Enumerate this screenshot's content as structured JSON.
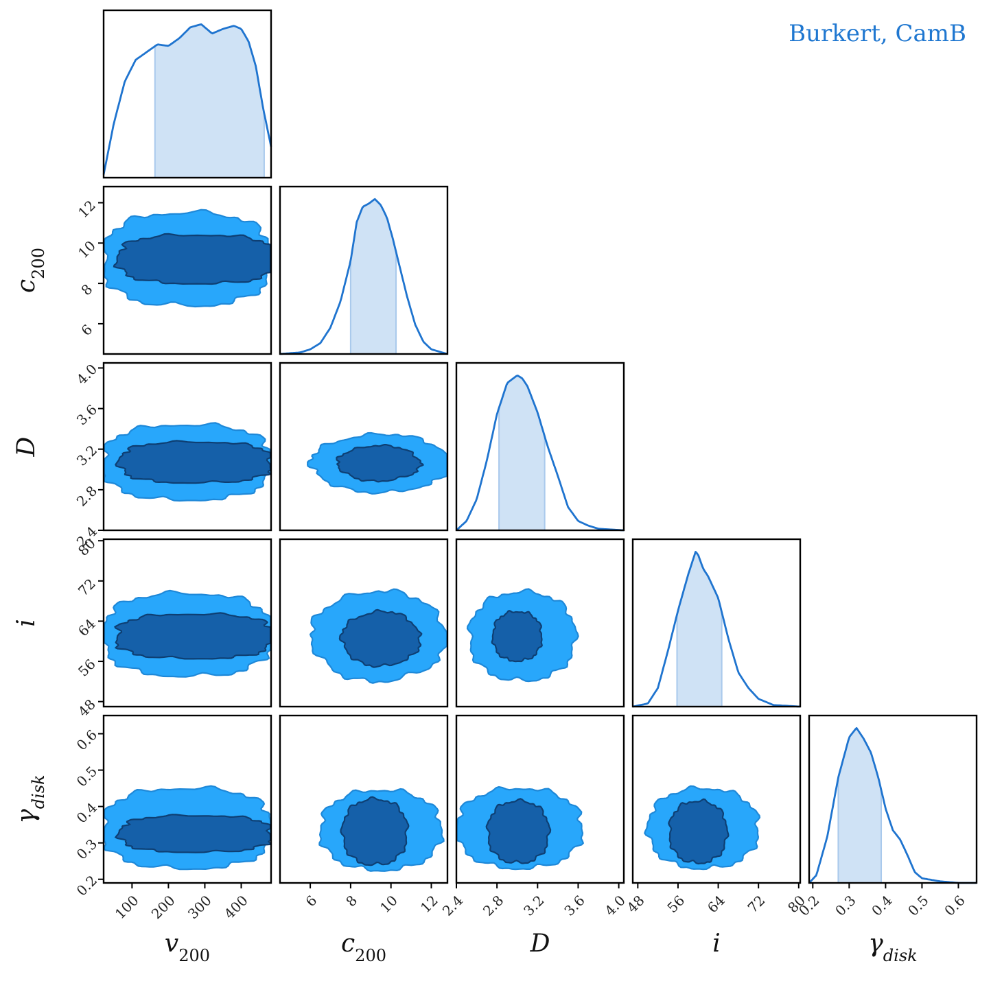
{
  "legend": {
    "label": "Burkert, CamB",
    "color": "#1f77d0"
  },
  "colors": {
    "line": "#1f74cf",
    "hdi_fill": "#cfe2f5",
    "hdi_edge": "#a9c9ec",
    "outer": "#28a7fb",
    "outer_edge": "#1e88d8",
    "inner": "#1560a9",
    "inner_edge": "#0e3f73"
  },
  "chart_data": {
    "type": "corner",
    "params": [
      {
        "id": "v200",
        "label": "v",
        "sub": "200",
        "range": [
          22,
          482
        ],
        "ticks": [
          100,
          200,
          300,
          400
        ],
        "tick_labels": [
          "100",
          "200",
          "300",
          "400"
        ]
      },
      {
        "id": "c200",
        "label": "c",
        "sub": "200",
        "range": [
          4.5,
          12.8
        ],
        "ticks": [
          6,
          8,
          10,
          12
        ],
        "tick_labels": [
          "6",
          "8",
          "10",
          "12"
        ]
      },
      {
        "id": "D",
        "label": "D",
        "sub": "",
        "range": [
          2.4,
          4.05
        ],
        "ticks": [
          2.4,
          2.8,
          3.2,
          3.6,
          4.0
        ],
        "tick_labels": [
          "2.4",
          "2.8",
          "3.2",
          "3.6",
          "4.0"
        ]
      },
      {
        "id": "i",
        "label": "i",
        "sub": "",
        "range": [
          47,
          80.3
        ],
        "ticks": [
          48,
          56,
          64,
          72,
          80
        ],
        "tick_labels": [
          "48",
          "56",
          "64",
          "72",
          "80"
        ]
      },
      {
        "id": "gdisk",
        "label": "γ",
        "sub": "disk",
        "range": [
          0.19,
          0.65
        ],
        "ticks": [
          0.2,
          0.3,
          0.4,
          0.5,
          0.6
        ],
        "tick_labels": [
          "0.2",
          "0.3",
          "0.4",
          "0.5",
          "0.6"
        ]
      }
    ],
    "marginals": [
      {
        "x": [
          22,
          50,
          80,
          110,
          140,
          170,
          200,
          230,
          260,
          290,
          320,
          350,
          380,
          400,
          420,
          440,
          460,
          482
        ],
        "y": [
          0.02,
          0.35,
          0.62,
          0.76,
          0.81,
          0.86,
          0.85,
          0.9,
          0.97,
          0.99,
          0.93,
          0.96,
          0.98,
          0.96,
          0.88,
          0.72,
          0.45,
          0.2
        ],
        "hdi": [
          163,
          463
        ]
      },
      {
        "x": [
          4.5,
          5.5,
          6.0,
          6.5,
          7.0,
          7.5,
          8.0,
          8.3,
          8.6,
          8.9,
          9.2,
          9.5,
          9.8,
          10.1,
          10.4,
          10.8,
          11.2,
          11.6,
          12.0,
          12.8
        ],
        "y": [
          0.0,
          0.01,
          0.03,
          0.07,
          0.17,
          0.34,
          0.6,
          0.85,
          0.95,
          0.97,
          1.0,
          0.96,
          0.88,
          0.74,
          0.58,
          0.37,
          0.19,
          0.08,
          0.03,
          0.0
        ],
        "hdi": [
          8.0,
          10.25
        ]
      },
      {
        "x": [
          2.4,
          2.5,
          2.6,
          2.7,
          2.8,
          2.9,
          3.0,
          3.05,
          3.1,
          3.2,
          3.3,
          3.4,
          3.5,
          3.6,
          3.7,
          3.8,
          4.05
        ],
        "y": [
          0.0,
          0.06,
          0.2,
          0.45,
          0.75,
          0.95,
          1.0,
          0.98,
          0.93,
          0.76,
          0.54,
          0.35,
          0.15,
          0.06,
          0.03,
          0.01,
          0.0
        ],
        "hdi": [
          2.82,
          3.27
        ]
      },
      {
        "x": [
          47,
          50,
          52,
          54,
          56,
          58,
          59.5,
          60,
          61,
          62,
          64,
          66,
          67,
          68,
          70,
          72,
          75,
          80.3
        ],
        "y": [
          0.0,
          0.02,
          0.12,
          0.36,
          0.62,
          0.85,
          1.0,
          0.98,
          0.89,
          0.84,
          0.7,
          0.44,
          0.33,
          0.22,
          0.12,
          0.05,
          0.01,
          0.0
        ],
        "hdi": [
          55.8,
          64.7
        ]
      },
      {
        "x": [
          0.19,
          0.21,
          0.24,
          0.27,
          0.3,
          0.32,
          0.34,
          0.36,
          0.38,
          0.4,
          0.42,
          0.44,
          0.46,
          0.48,
          0.5,
          0.55,
          0.6,
          0.65
        ],
        "y": [
          0.0,
          0.05,
          0.3,
          0.68,
          0.94,
          1.0,
          0.93,
          0.84,
          0.68,
          0.48,
          0.34,
          0.28,
          0.18,
          0.07,
          0.03,
          0.01,
          0.0,
          0.0
        ],
        "hdi": [
          0.27,
          0.388
        ]
      }
    ],
    "pairs": [
      {
        "row": 1,
        "col": 0,
        "outer": {
          "cx": 252,
          "cy": 9.2,
          "rx": 232,
          "ry": 2.3,
          "rot": 0,
          "sq": 0.22
        },
        "inner": {
          "cx": 279,
          "cy": 9.2,
          "rx": 218,
          "ry": 1.2,
          "rot": 0,
          "sq": 0.28
        }
      },
      {
        "row": 2,
        "col": 0,
        "outer": {
          "cx": 252,
          "cy": 3.07,
          "rx": 232,
          "ry": 0.37,
          "rot": 0,
          "sq": 0.22
        },
        "inner": {
          "cx": 275,
          "cy": 3.07,
          "rx": 208,
          "ry": 0.2,
          "rot": 0,
          "sq": 0.28
        }
      },
      {
        "row": 2,
        "col": 1,
        "outer": {
          "cx": 9.5,
          "cy": 3.06,
          "rx": 3.4,
          "ry": 0.28,
          "rot": 30,
          "sq": 0.1
        },
        "inner": {
          "cx": 9.4,
          "cy": 3.06,
          "rx": 2.0,
          "ry": 0.17,
          "rot": 30,
          "sq": 0.12
        }
      },
      {
        "row": 2,
        "col": 2,
        "skip": true
      },
      {
        "row": 3,
        "col": 0,
        "outer": {
          "cx": 252,
          "cy": 61.3,
          "rx": 232,
          "ry": 8.2,
          "rot": -1,
          "sq": 0.22
        },
        "inner": {
          "cx": 272,
          "cy": 61.0,
          "rx": 215,
          "ry": 4.4,
          "rot": -1,
          "sq": 0.28
        }
      },
      {
        "row": 3,
        "col": 1,
        "outer": {
          "cx": 9.4,
          "cy": 61.0,
          "rx": 3.3,
          "ry": 8.8,
          "rot": 25,
          "sq": 0.1
        },
        "inner": {
          "cx": 9.5,
          "cy": 60.5,
          "rx": 1.9,
          "ry": 5.3,
          "rot": 25,
          "sq": 0.12
        }
      },
      {
        "row": 3,
        "col": 2,
        "outer": {
          "cx": 3.05,
          "cy": 61.0,
          "rx": 0.52,
          "ry": 8.8,
          "rot": 0,
          "sq": 0.1
        },
        "inner": {
          "cx": 3.0,
          "cy": 61.0,
          "rx": 0.24,
          "ry": 4.9,
          "rot": 0,
          "sq": 0.12
        }
      },
      {
        "row": 4,
        "col": 0,
        "outer": {
          "cx": 252,
          "cy": 0.34,
          "rx": 232,
          "ry": 0.11,
          "rot": 0,
          "sq": 0.22
        },
        "inner": {
          "cx": 275,
          "cy": 0.325,
          "rx": 208,
          "ry": 0.05,
          "rot": 0,
          "sq": 0.28
        }
      },
      {
        "row": 4,
        "col": 1,
        "outer": {
          "cx": 9.5,
          "cy": 0.335,
          "rx": 3.0,
          "ry": 0.11,
          "rot": 0,
          "sq": 0.1
        },
        "inner": {
          "cx": 9.2,
          "cy": 0.33,
          "rx": 1.6,
          "ry": 0.09,
          "rot": 0,
          "sq": 0.12
        }
      },
      {
        "row": 4,
        "col": 2,
        "outer": {
          "cx": 3.02,
          "cy": 0.34,
          "rx": 0.62,
          "ry": 0.11,
          "rot": 0,
          "sq": 0.1
        },
        "inner": {
          "cx": 3.01,
          "cy": 0.33,
          "rx": 0.3,
          "ry": 0.085,
          "rot": 0,
          "sq": 0.12
        }
      },
      {
        "row": 4,
        "col": 3,
        "outer": {
          "cx": 61.0,
          "cy": 0.34,
          "rx": 11.0,
          "ry": 0.11,
          "rot": 0,
          "sq": 0.1
        },
        "inner": {
          "cx": 60.0,
          "cy": 0.33,
          "rx": 5.7,
          "ry": 0.085,
          "rot": 0,
          "sq": 0.12
        }
      }
    ]
  }
}
